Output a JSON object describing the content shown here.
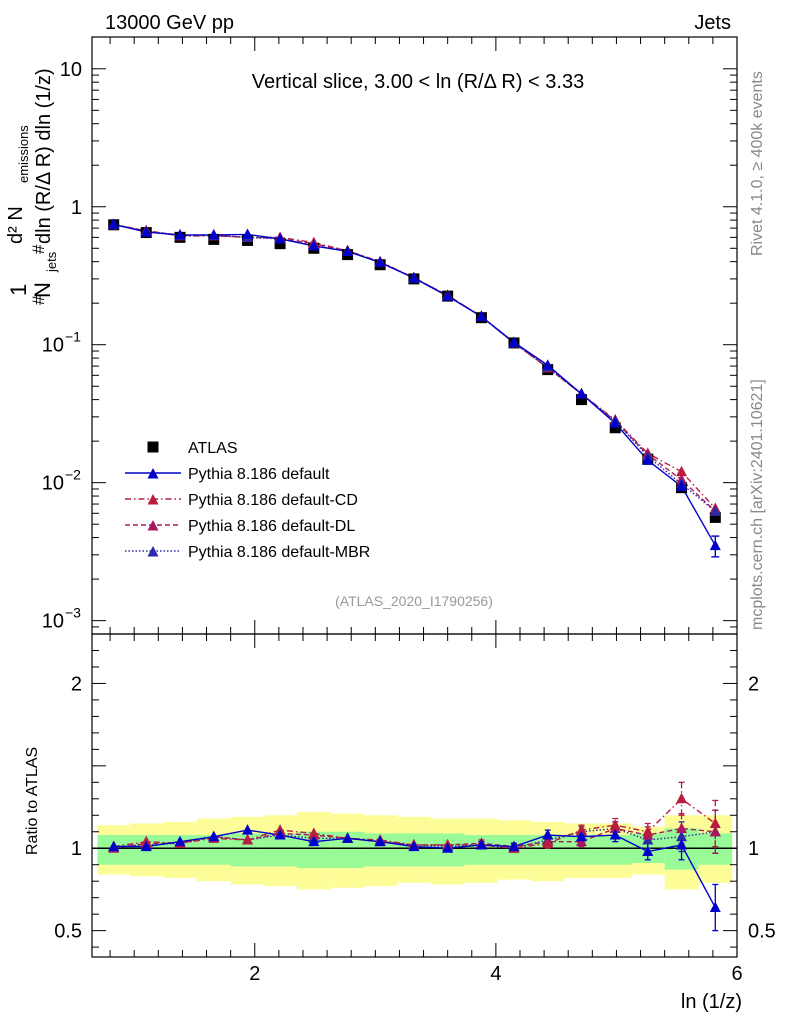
{
  "header": {
    "energy": "13000 GeV pp",
    "category": "Jets",
    "rivet_label": "Rivet 4.1.0, ≥ 400k events",
    "site_label": "mcplots.cern.ch [arXiv:2401.10621]",
    "analysis_id": "(ATLAS_2020_I1790256)"
  },
  "chart_data": [
    {
      "type": "line",
      "title": "Vertical slice, 3.00 < ln (R/Δ R) < 3.33",
      "xlabel": "ln (1/z)",
      "ylabel_parts": [
        "#",
        "1",
        "N",
        "jets",
        "#",
        "d² N",
        "emissions",
        "dln (R/Δ R) dln (1/z)"
      ],
      "yscale": "log",
      "xlim": [
        0.65,
        6.0
      ],
      "ylim": [
        0.0008,
        17
      ],
      "ytick_labels": [
        {
          "v": 10,
          "base": "10",
          "exp": ""
        },
        {
          "v": 1,
          "base": "1",
          "exp": ""
        },
        {
          "v": 0.1,
          "base": "10",
          "exp": "−1"
        },
        {
          "v": 0.01,
          "base": "10",
          "exp": "−2"
        },
        {
          "v": 0.001,
          "base": "10",
          "exp": "−3"
        }
      ],
      "x": [
        0.83,
        1.1,
        1.38,
        1.66,
        1.94,
        2.21,
        2.49,
        2.77,
        3.04,
        3.32,
        3.6,
        3.88,
        4.15,
        4.43,
        4.71,
        4.99,
        5.26,
        5.54,
        5.82
      ],
      "series": [
        {
          "name": "ATLAS",
          "color": "#000000",
          "marker": "square",
          "line": "none",
          "values": [
            0.74,
            0.65,
            0.6,
            0.58,
            0.57,
            0.54,
            0.5,
            0.45,
            0.38,
            0.3,
            0.225,
            0.157,
            0.103,
            0.066,
            0.04,
            0.025,
            0.0148,
            0.0092,
            0.0056
          ]
        },
        {
          "name": "Pythia 8.186 default",
          "color": "#0000cc",
          "marker": "triangle",
          "line": "solid",
          "values": [
            0.745,
            0.655,
            0.625,
            0.625,
            0.63,
            0.585,
            0.52,
            0.475,
            0.395,
            0.305,
            0.225,
            0.16,
            0.104,
            0.071,
            0.044,
            0.027,
            0.0145,
            0.0094,
            0.0035
          ],
          "err_last": [
            0.0029,
            0.0041
          ]
        },
        {
          "name": "Pythia 8.186 default-CD",
          "color": "#b81d3e",
          "marker": "triangle",
          "line": "dashdot",
          "values": [
            0.745,
            0.67,
            0.615,
            0.615,
            0.6,
            0.6,
            0.55,
            0.48,
            0.4,
            0.305,
            0.228,
            0.16,
            0.103,
            0.068,
            0.044,
            0.0285,
            0.0163,
            0.012,
            0.0065
          ]
        },
        {
          "name": "Pythia 8.186 default-DL",
          "color": "#a8185f",
          "marker": "triangle",
          "line": "dashed",
          "values": [
            0.74,
            0.67,
            0.62,
            0.62,
            0.6,
            0.59,
            0.54,
            0.48,
            0.395,
            0.305,
            0.228,
            0.16,
            0.103,
            0.068,
            0.044,
            0.028,
            0.016,
            0.0105,
            0.0062
          ]
        },
        {
          "name": "Pythia 8.186 default-MBR",
          "color": "#2a2aa8",
          "marker": "triangle",
          "line": "dotted",
          "values": [
            0.745,
            0.66,
            0.62,
            0.62,
            0.6,
            0.585,
            0.525,
            0.475,
            0.395,
            0.303,
            0.225,
            0.16,
            0.103,
            0.069,
            0.044,
            0.028,
            0.0155,
            0.0098,
            0.0062
          ]
        }
      ],
      "legend": "middle-left"
    },
    {
      "type": "line",
      "ylabel": "Ratio to ATLAS",
      "xlim": [
        0.65,
        6.0
      ],
      "ylim": [
        0.34,
        2.3
      ],
      "xtick_labels": [
        {
          "v": 2,
          "label": "2"
        },
        {
          "v": 4,
          "label": "4"
        },
        {
          "v": 6,
          "label": "6"
        }
      ],
      "ytick_labels": [
        {
          "v": 2,
          "label": "2"
        },
        {
          "v": 1,
          "label": "1"
        },
        {
          "v": 0.5,
          "label": "0.5"
        }
      ],
      "band_inner": [
        [
          0.9,
          1.08
        ],
        [
          0.9,
          1.08
        ],
        [
          0.9,
          1.08
        ],
        [
          0.9,
          1.08
        ],
        [
          0.89,
          1.09
        ],
        [
          0.89,
          1.09
        ],
        [
          0.88,
          1.1
        ],
        [
          0.88,
          1.1
        ],
        [
          0.89,
          1.09
        ],
        [
          0.89,
          1.09
        ],
        [
          0.89,
          1.09
        ],
        [
          0.9,
          1.08
        ],
        [
          0.9,
          1.08
        ],
        [
          0.9,
          1.08
        ],
        [
          0.9,
          1.08
        ],
        [
          0.9,
          1.08
        ],
        [
          0.91,
          1.09
        ],
        [
          0.87,
          1.12
        ],
        [
          0.9,
          1.09
        ]
      ],
      "band_outer": [
        [
          0.84,
          1.14
        ],
        [
          0.83,
          1.15
        ],
        [
          0.82,
          1.16
        ],
        [
          0.8,
          1.18
        ],
        [
          0.78,
          1.19
        ],
        [
          0.77,
          1.2
        ],
        [
          0.75,
          1.22
        ],
        [
          0.76,
          1.21
        ],
        [
          0.77,
          1.2
        ],
        [
          0.79,
          1.19
        ],
        [
          0.78,
          1.18
        ],
        [
          0.79,
          1.18
        ],
        [
          0.81,
          1.17
        ],
        [
          0.8,
          1.16
        ],
        [
          0.82,
          1.15
        ],
        [
          0.82,
          1.15
        ],
        [
          0.84,
          1.13
        ],
        [
          0.75,
          1.2
        ],
        [
          0.79,
          1.2
        ]
      ],
      "series": [
        {
          "name": "Pythia 8.186 default",
          "color": "#0000cc",
          "line": "solid",
          "values": [
            1.01,
            1.01,
            1.04,
            1.07,
            1.11,
            1.08,
            1.04,
            1.06,
            1.04,
            1.01,
            1.0,
            1.02,
            1.01,
            1.08,
            1.07,
            1.08,
            0.98,
            1.02,
            0.64
          ],
          "errs": [
            0.005,
            0.01,
            0.01,
            0.01,
            0.01,
            0.01,
            0.01,
            0.01,
            0.01,
            0.01,
            0.01,
            0.02,
            0.02,
            0.03,
            0.03,
            0.04,
            0.05,
            0.09,
            0.14
          ]
        },
        {
          "name": "Pythia 8.186 default-CD",
          "color": "#b81d3e",
          "line": "dashdot",
          "values": [
            1.01,
            1.04,
            1.03,
            1.06,
            1.05,
            1.11,
            1.09,
            1.06,
            1.05,
            1.02,
            1.02,
            1.02,
            1.0,
            1.03,
            1.11,
            1.14,
            1.1,
            1.3,
            1.15
          ],
          "errs": [
            0.005,
            0.01,
            0.01,
            0.01,
            0.01,
            0.01,
            0.01,
            0.01,
            0.01,
            0.01,
            0.01,
            0.02,
            0.02,
            0.03,
            0.03,
            0.04,
            0.05,
            0.1,
            0.14
          ]
        },
        {
          "name": "Pythia 8.186 default-DL",
          "color": "#a8185f",
          "line": "dashed",
          "values": [
            1.0,
            1.03,
            1.03,
            1.07,
            1.05,
            1.09,
            1.08,
            1.06,
            1.04,
            1.02,
            1.02,
            1.03,
            1.01,
            1.04,
            1.04,
            1.12,
            1.08,
            1.12,
            1.1
          ],
          "errs": [
            0.005,
            0.01,
            0.01,
            0.01,
            0.01,
            0.01,
            0.01,
            0.01,
            0.01,
            0.01,
            0.01,
            0.02,
            0.02,
            0.03,
            0.03,
            0.04,
            0.05,
            0.09,
            0.13
          ]
        },
        {
          "name": "Pythia 8.186 default-MBR",
          "color": "#2a2aa8",
          "line": "dotted",
          "values": [
            1.01,
            1.02,
            1.03,
            1.07,
            1.05,
            1.08,
            1.06,
            1.06,
            1.04,
            1.02,
            1.01,
            1.02,
            1.0,
            1.05,
            1.1,
            1.12,
            1.05,
            1.07,
            1.1
          ],
          "errs": [
            0.005,
            0.01,
            0.01,
            0.01,
            0.01,
            0.01,
            0.01,
            0.01,
            0.01,
            0.01,
            0.01,
            0.02,
            0.02,
            0.03,
            0.03,
            0.04,
            0.05,
            0.09,
            0.13
          ]
        }
      ]
    }
  ]
}
